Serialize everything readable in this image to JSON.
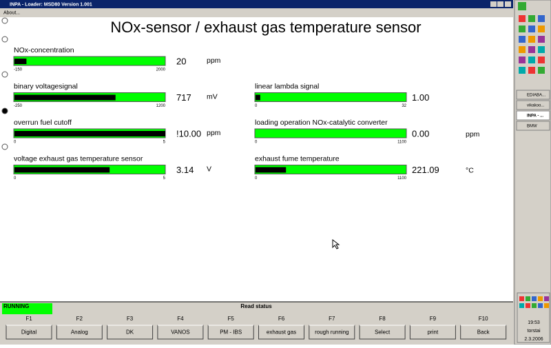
{
  "window": {
    "title": "INPA - Loader: MSD80 Version 1.001",
    "menu": [
      "About..."
    ]
  },
  "header": {
    "title": "NOx-sensor / exhaust gas temperature sensor"
  },
  "gauges": [
    {
      "label": "NOx-concentration",
      "value": 20,
      "unit": "ppm",
      "min": -150,
      "max": 2000
    },
    {
      "label": "binary voltagesignal",
      "value": 717,
      "unit": "mV",
      "min": -250,
      "max": 1200
    },
    {
      "label": "overrun fuel cutoff",
      "value": 10,
      "value_label": "!10.00",
      "unit": "ppm",
      "min": 0,
      "max": 5
    },
    {
      "label": "voltage exhaust gas temperature sensor",
      "value": 3.14,
      "unit": "V",
      "min": 0,
      "max": 5
    },
    {
      "label": "linear lambda signal",
      "value": 1,
      "value_label": "1.00",
      "min": 0,
      "max": 32
    },
    {
      "label": "loading operation NOx-catalytic converter",
      "value": 0,
      "value_label": "0.00",
      "unit": "ppm",
      "min": 0,
      "max": 1100
    },
    {
      "label": "exhaust fume temperature",
      "value": 221.09,
      "value_label": "221.09",
      "unit": "°C",
      "min": 0,
      "max": 1100
    }
  ],
  "status": {
    "state": "RUNNING",
    "label": "Read status"
  },
  "function_keys": [
    {
      "key": "F1",
      "label": "Digital"
    },
    {
      "key": "F2",
      "label": "Analog"
    },
    {
      "key": "F3",
      "label": "DK"
    },
    {
      "key": "F4",
      "label": "VANOS"
    },
    {
      "key": "F5",
      "label": "PM - IBS"
    },
    {
      "key": "F6",
      "label": "exhaust gas"
    },
    {
      "key": "F7",
      "label": "rough running"
    },
    {
      "key": "F8",
      "label": "Select"
    },
    {
      "key": "F9",
      "label": "print"
    },
    {
      "key": "F10",
      "label": "Back"
    }
  ],
  "taskbar": {
    "items": [
      "EDIABA...",
      "vikakoo...",
      "INPA - ...",
      "BMW"
    ],
    "time": "19:53",
    "day": "torstai",
    "date": "2.3.2006"
  }
}
